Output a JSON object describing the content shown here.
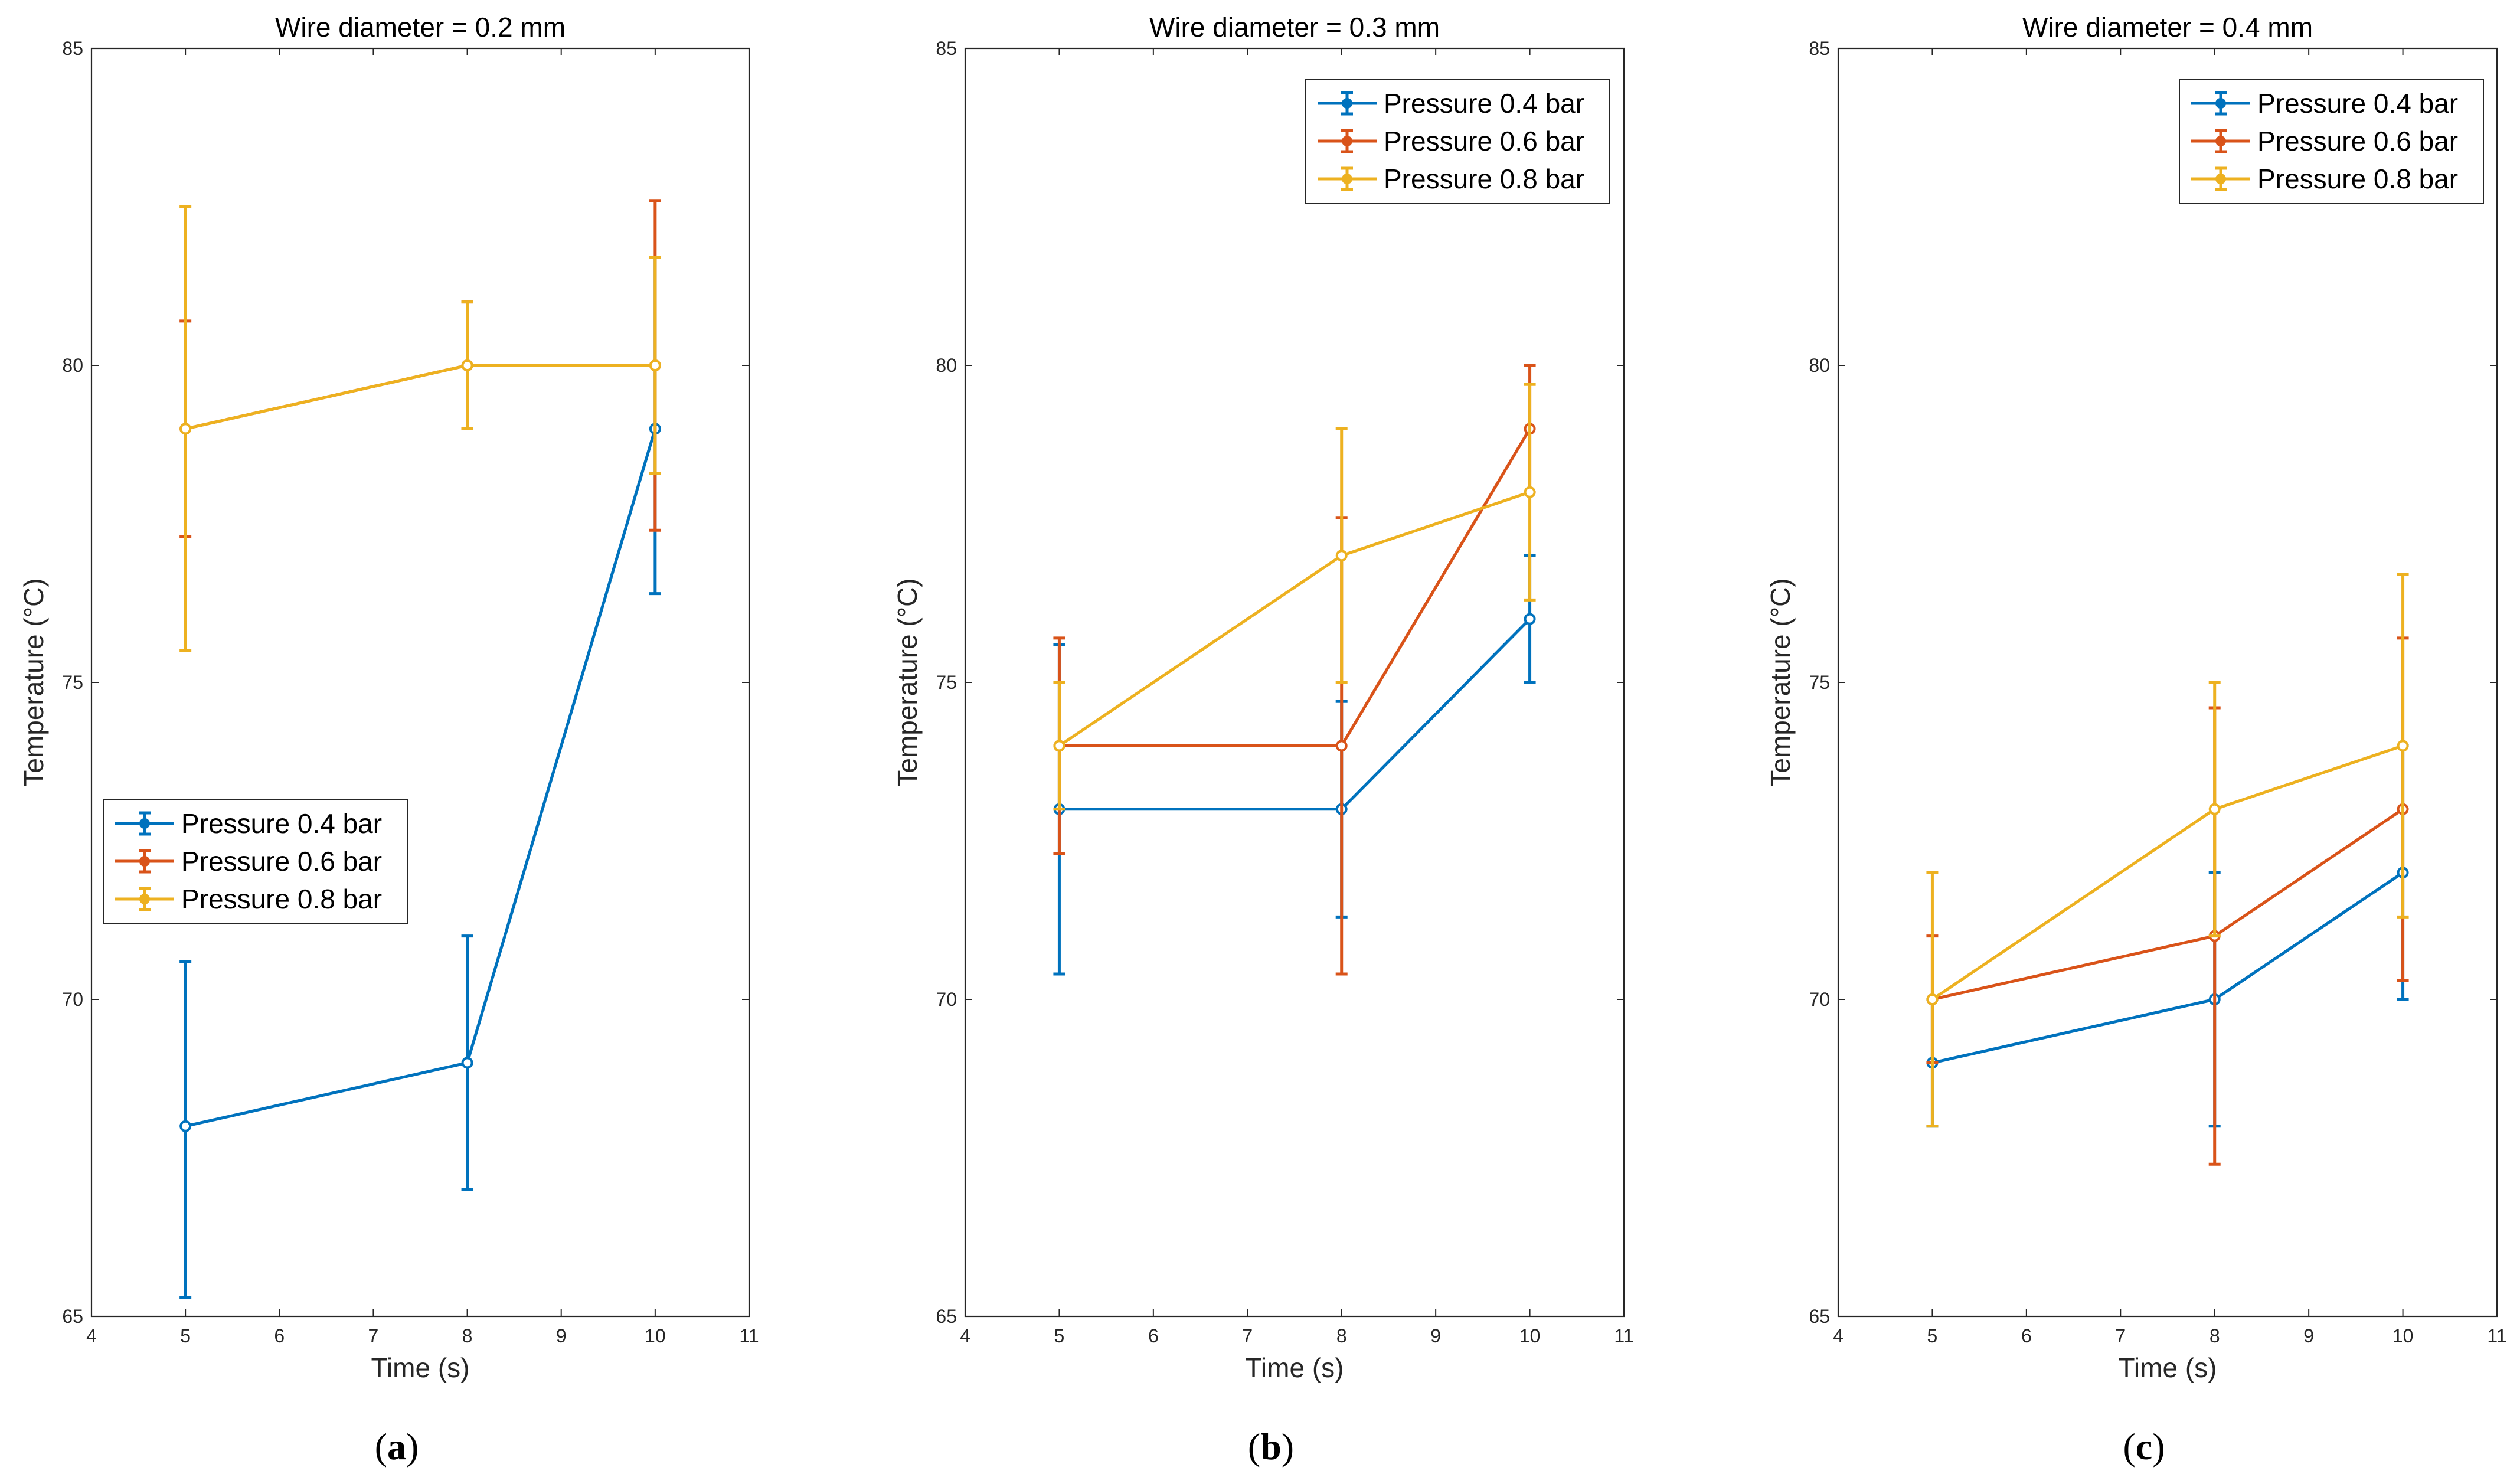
{
  "chart_data": [
    {
      "type": "line",
      "title": "Wire diameter = 0.2 mm",
      "panel_letter": "a",
      "xlabel": "Time (s)",
      "ylabel": "Temperature  (°C)",
      "xlim": [
        4,
        11
      ],
      "ylim": [
        65,
        85
      ],
      "xticks": [
        4,
        5,
        6,
        7,
        8,
        9,
        10,
        11
      ],
      "yticks": [
        65,
        70,
        75,
        80,
        85
      ],
      "grid": false,
      "legend_position": "lower-left",
      "x": [
        5,
        8,
        10
      ],
      "series": [
        {
          "name": "Pressure 0.4 bar",
          "color": "#0072BD",
          "values": [
            68,
            69,
            79
          ],
          "lower": [
            65.3,
            67.0,
            76.4
          ],
          "upper": [
            70.6,
            71.0,
            81.7
          ]
        },
        {
          "name": "Pressure 0.6 bar",
          "color": "#D95319",
          "values": [
            79,
            80,
            80
          ],
          "lower": [
            77.3,
            79.0,
            77.4
          ],
          "upper": [
            80.7,
            81.0,
            82.6
          ]
        },
        {
          "name": "Pressure 0.8 bar",
          "color": "#EDB120",
          "values": [
            79,
            80,
            80
          ],
          "lower": [
            75.5,
            79.0,
            78.3
          ],
          "upper": [
            82.5,
            81.0,
            81.7
          ]
        }
      ]
    },
    {
      "type": "line",
      "title": "Wire diameter = 0.3 mm",
      "panel_letter": "b",
      "xlabel": "Time (s)",
      "ylabel": "Temperature  (°C)",
      "xlim": [
        4,
        11
      ],
      "ylim": [
        65,
        85
      ],
      "xticks": [
        4,
        5,
        6,
        7,
        8,
        9,
        10,
        11
      ],
      "yticks": [
        65,
        70,
        75,
        80,
        85
      ],
      "grid": false,
      "legend_position": "top-right",
      "x": [
        5,
        8,
        10
      ],
      "series": [
        {
          "name": "Pressure 0.4 bar",
          "color": "#0072BD",
          "values": [
            73,
            73,
            76
          ],
          "lower": [
            70.4,
            71.3,
            75.0
          ],
          "upper": [
            75.6,
            74.7,
            77.0
          ]
        },
        {
          "name": "Pressure 0.6 bar",
          "color": "#D95319",
          "values": [
            74,
            74,
            79
          ],
          "lower": [
            72.3,
            70.4,
            78.0
          ],
          "upper": [
            75.7,
            77.6,
            80.0
          ]
        },
        {
          "name": "Pressure 0.8 bar",
          "color": "#EDB120",
          "values": [
            74,
            77,
            78
          ],
          "lower": [
            73.0,
            75.0,
            76.3
          ],
          "upper": [
            75.0,
            79.0,
            79.7
          ]
        }
      ]
    },
    {
      "type": "line",
      "title": "Wire diameter = 0.4 mm",
      "panel_letter": "c",
      "xlabel": "Time (s)",
      "ylabel": "Temperature  (°C)",
      "xlim": [
        4,
        11
      ],
      "ylim": [
        65,
        85
      ],
      "xticks": [
        4,
        5,
        6,
        7,
        8,
        9,
        10,
        11
      ],
      "yticks": [
        65,
        70,
        75,
        80,
        85
      ],
      "grid": false,
      "legend_position": "top-right",
      "x": [
        5,
        8,
        10
      ],
      "series": [
        {
          "name": "Pressure 0.4 bar",
          "color": "#0072BD",
          "values": [
            69,
            70,
            72
          ],
          "lower": [
            68.0,
            68.0,
            70.0
          ],
          "upper": [
            70.0,
            72.0,
            74.0
          ]
        },
        {
          "name": "Pressure 0.6 bar",
          "color": "#D95319",
          "values": [
            70,
            71,
            73
          ],
          "lower": [
            69.0,
            67.4,
            70.3
          ],
          "upper": [
            71.0,
            74.6,
            75.7
          ]
        },
        {
          "name": "Pressure 0.8 bar",
          "color": "#EDB120",
          "values": [
            70,
            73,
            74
          ],
          "lower": [
            68.0,
            71.0,
            71.3
          ],
          "upper": [
            72.0,
            75.0,
            76.7
          ]
        }
      ]
    }
  ]
}
